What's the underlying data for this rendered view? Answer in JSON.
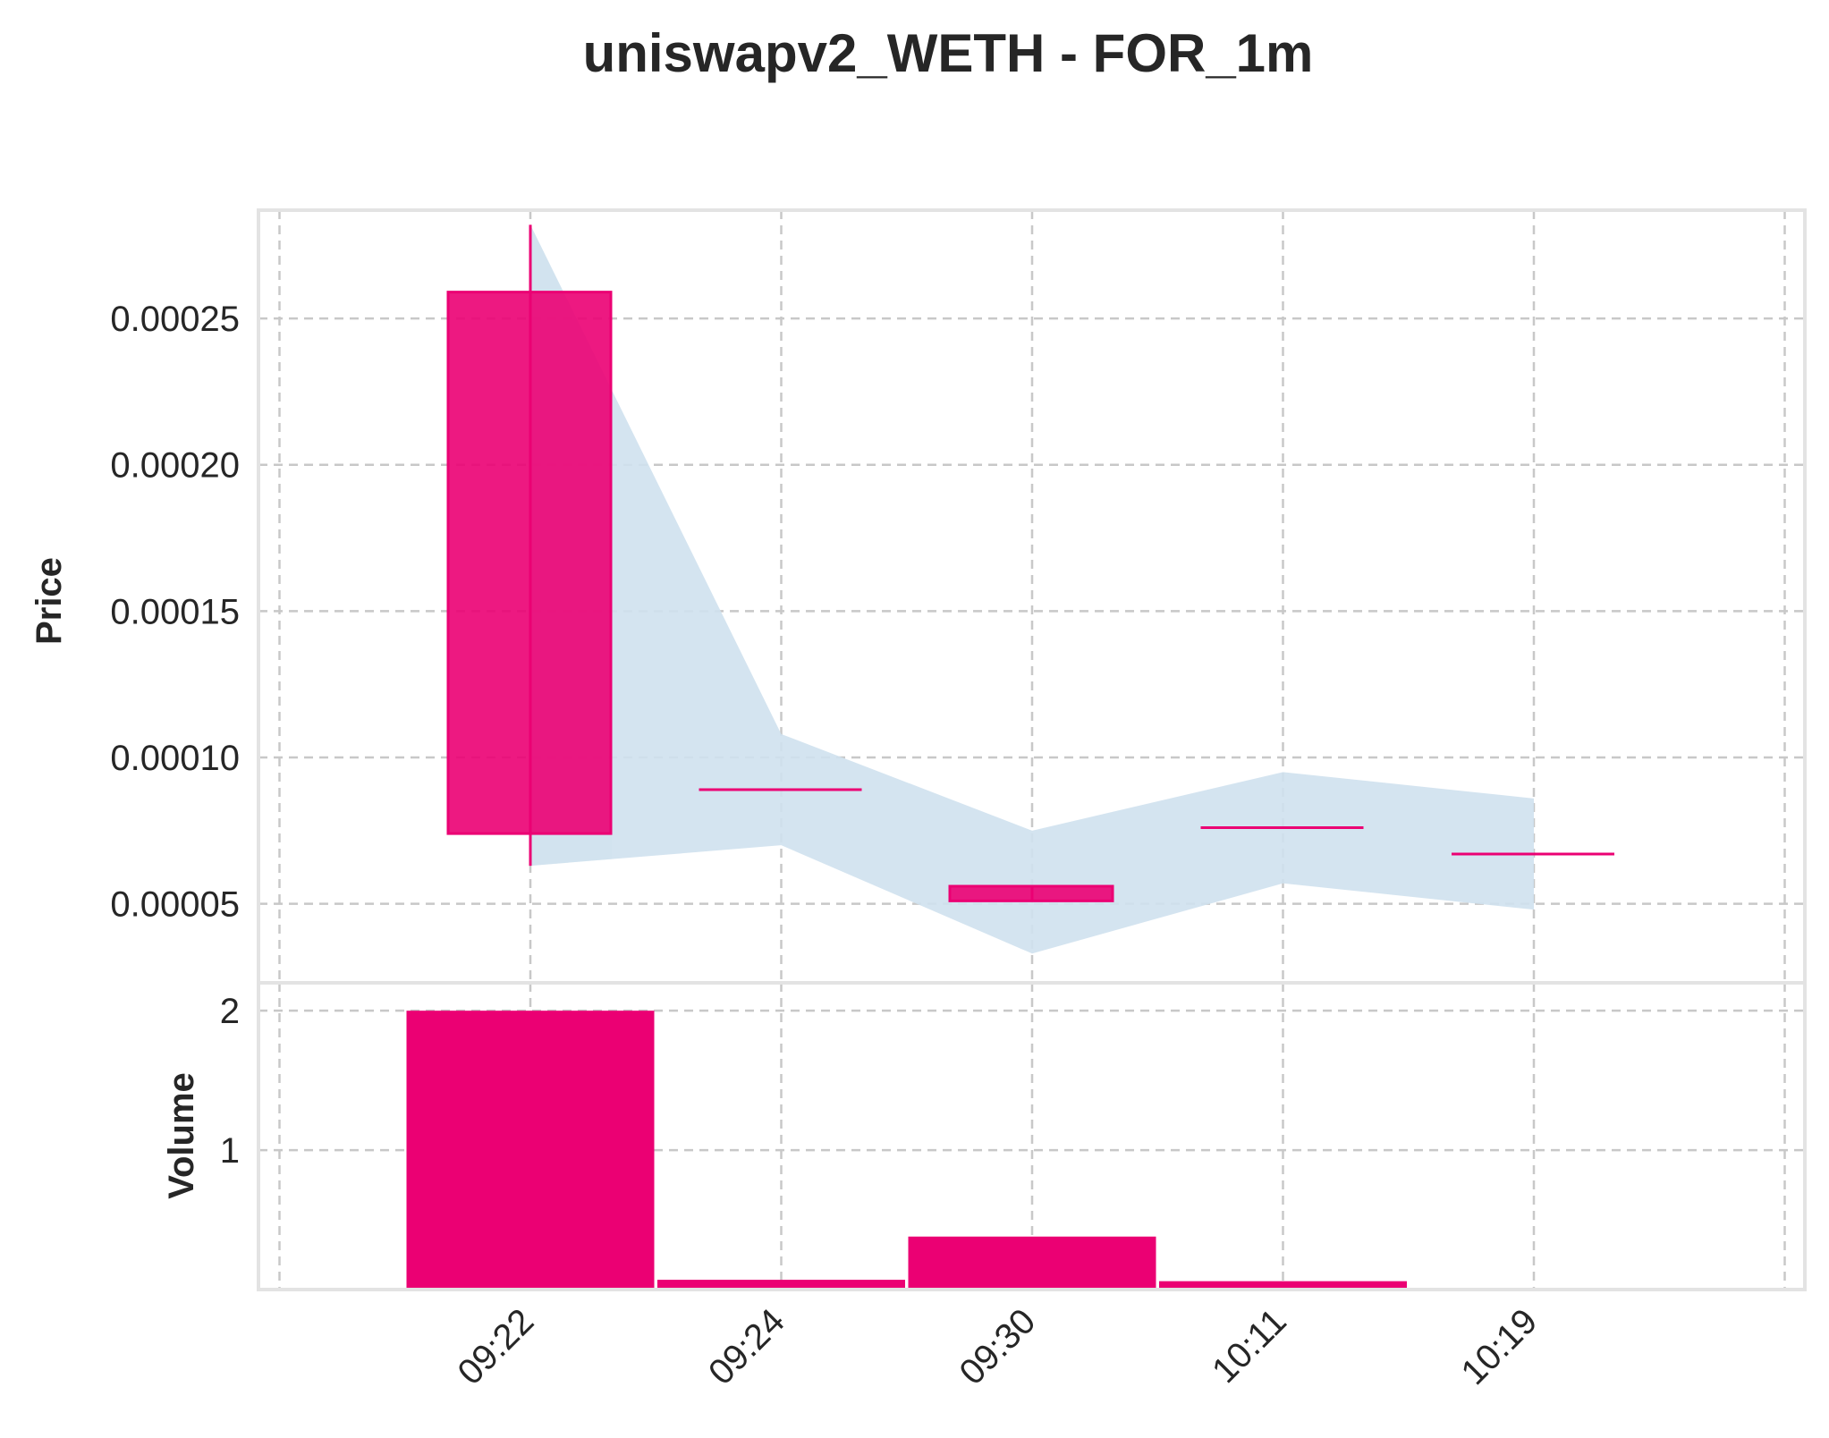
{
  "chart_data": {
    "title": "uniswapv2_WETH - FOR_1m",
    "type": "candlestick",
    "categories": [
      "09:22",
      "09:24",
      "09:30",
      "10:11",
      "10:19"
    ],
    "candles": [
      {
        "time": "09:22",
        "open": 0.000259,
        "high": 0.000282,
        "low": 6.3e-05,
        "close": 7.4e-05
      },
      {
        "time": "09:24",
        "open": 8.9e-05,
        "high": 8.9e-05,
        "low": 8.9e-05,
        "close": 8.9e-05
      },
      {
        "time": "09:30",
        "open": 5.6e-05,
        "high": 5.6e-05,
        "low": 5.1e-05,
        "close": 5.1e-05
      },
      {
        "time": "10:11",
        "open": 7.6e-05,
        "high": 7.6e-05,
        "low": 7.6e-05,
        "close": 7.6e-05
      },
      {
        "time": "10:19",
        "open": 6.7e-05,
        "high": 6.7e-05,
        "low": 6.7e-05,
        "close": 6.7e-05
      }
    ],
    "band": {
      "upper": [
        0.000282,
        0.000108,
        7.5e-05,
        9.5e-05,
        8.6e-05
      ],
      "lower": [
        6.3e-05,
        7e-05,
        3.3e-05,
        5.7e-05,
        4.8e-05
      ]
    },
    "volume": [
      2.0,
      0.07,
      0.38,
      0.06,
      0.005
    ],
    "price_axis": {
      "label": "Price",
      "ylim": [
        2.3e-05,
        0.000287
      ],
      "ticks": [
        "0.00005",
        "0.00010",
        "0.00015",
        "0.00020",
        "0.00025"
      ],
      "tick_values": [
        5e-05,
        0.0001,
        0.00015,
        0.0002,
        0.00025
      ]
    },
    "volume_axis": {
      "label": "Volume",
      "ylim": [
        0,
        2.2
      ],
      "ticks": [
        "1",
        "2"
      ],
      "tick_values": [
        1,
        2
      ]
    },
    "x_ticks": [
      "09:22",
      "09:24",
      "09:30",
      "10:11",
      "10:19"
    ],
    "grid": true,
    "colors": {
      "candle": "#eb0073",
      "band": "#cfe1ee",
      "volume": "#eb0073",
      "text": "#262626"
    }
  }
}
